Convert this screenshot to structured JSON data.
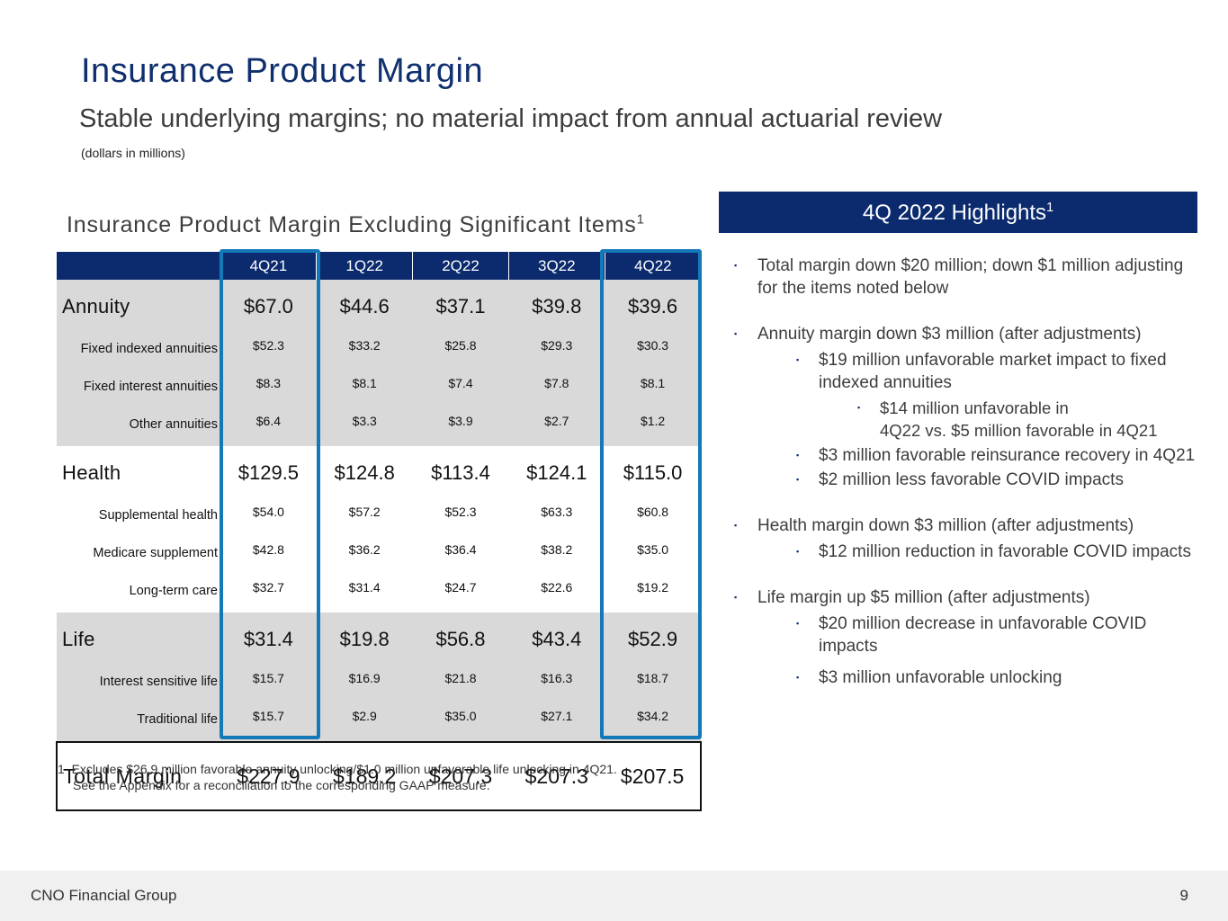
{
  "title": "Insurance Product Margin",
  "subtitle": "Stable underlying margins; no material impact from annual actuarial review",
  "units_note": "(dollars in millions)",
  "table": {
    "title": "Insurance Product Margin Excluding Significant Items",
    "title_footnote": "1",
    "periods": [
      "4Q21",
      "1Q22",
      "2Q22",
      "3Q22",
      "4Q22"
    ],
    "highlighted_periods": [
      "4Q21",
      "4Q22"
    ],
    "sections": [
      {
        "name": "Annuity",
        "values": [
          "$67.0",
          "$44.6",
          "$37.1",
          "$39.8",
          "$39.6"
        ],
        "rows": [
          {
            "name": "Fixed indexed annuities",
            "values": [
              "$52.3",
              "$33.2",
              "$25.8",
              "$29.3",
              "$30.3"
            ]
          },
          {
            "name": "Fixed interest annuities",
            "values": [
              "$8.3",
              "$8.1",
              "$7.4",
              "$7.8",
              "$8.1"
            ]
          },
          {
            "name": "Other annuities",
            "values": [
              "$6.4",
              "$3.3",
              "$3.9",
              "$2.7",
              "$1.2"
            ]
          }
        ]
      },
      {
        "name": "Health",
        "values": [
          "$129.5",
          "$124.8",
          "$113.4",
          "$124.1",
          "$115.0"
        ],
        "rows": [
          {
            "name": "Supplemental health",
            "values": [
              "$54.0",
              "$57.2",
              "$52.3",
              "$63.3",
              "$60.8"
            ]
          },
          {
            "name": "Medicare supplement",
            "values": [
              "$42.8",
              "$36.2",
              "$36.4",
              "$38.2",
              "$35.0"
            ]
          },
          {
            "name": "Long-term care",
            "values": [
              "$32.7",
              "$31.4",
              "$24.7",
              "$22.6",
              "$19.2"
            ]
          }
        ]
      },
      {
        "name": "Life",
        "values": [
          "$31.4",
          "$19.8",
          "$56.8",
          "$43.4",
          "$52.9"
        ],
        "rows": [
          {
            "name": "Interest sensitive life",
            "values": [
              "$15.7",
              "$16.9",
              "$21.8",
              "$16.3",
              "$18.7"
            ]
          },
          {
            "name": "Traditional life",
            "values": [
              "$15.7",
              "$2.9",
              "$35.0",
              "$27.1",
              "$34.2"
            ]
          }
        ]
      }
    ],
    "total": {
      "name": "Total Margin",
      "values": [
        "$227.9",
        "$189.2",
        "$207.3",
        "$207.3",
        "$207.5"
      ]
    }
  },
  "footnote": {
    "marker": "1",
    "line1": "Excludes $26.9 million favorable annuity unlocking/$1.0 million unfavorable life unlocking in 4Q21.",
    "line2": "See the Appendix for a reconciliation to the corresponding GAAP measure."
  },
  "highlights": {
    "header": "4Q 2022 Highlights",
    "header_footnote": "1",
    "bullet_marker": "▪",
    "items": [
      "Total margin down $20 million; down $1 million adjusting for the items noted below",
      "Annuity margin down $3 million (after adjustments)",
      "$19 million unfavorable market impact to fixed indexed annuities",
      "$14 million unfavorable in",
      "4Q22 vs.  $5 million favorable in 4Q21",
      "$3 million favorable reinsurance recovery in 4Q21",
      "$2 million less favorable COVID impacts",
      "Health margin down $3 million (after adjustments)",
      "$12 million reduction in favorable COVID impacts",
      "Life margin up $5 million (after adjustments)",
      "$20 million decrease in unfavorable COVID impacts",
      "$3 million unfavorable unlocking"
    ]
  },
  "footer": {
    "company": "CNO Financial Group",
    "page": "9"
  },
  "colors": {
    "navy": "#0b2b6e",
    "highlight_frame": "#1479b8",
    "shade": "#d9d9d9"
  }
}
